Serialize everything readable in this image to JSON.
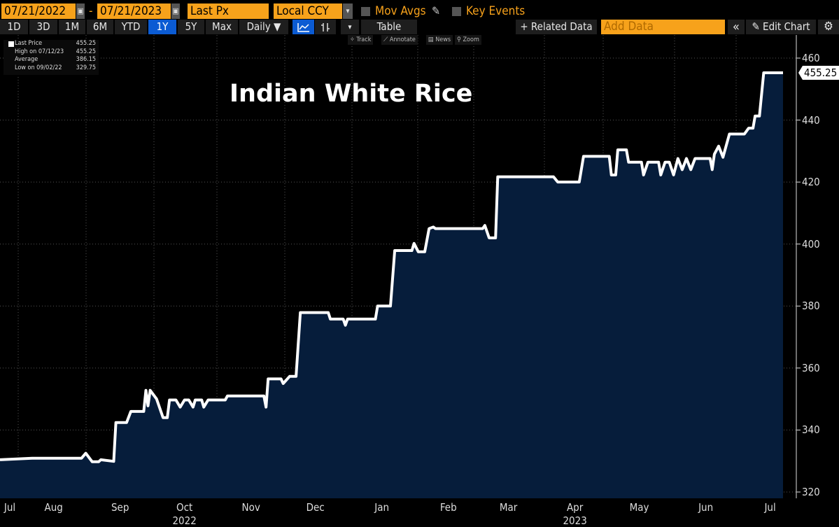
{
  "toolbar": {
    "start_date": "07/21/2022",
    "separator": "-",
    "end_date": "07/21/2023",
    "field": "Last Px",
    "currency": "Local CCY",
    "mov_avgs_label": "Mov Avgs",
    "key_events_label": "Key Events",
    "periods": [
      "1D",
      "3D",
      "1M",
      "6M",
      "YTD",
      "1Y",
      "5Y",
      "Max"
    ],
    "active_period": "1Y",
    "frequency": "Daily ▼",
    "dropdown_arrow": "▾",
    "table_label": "Table",
    "related_data_label": "+ Related Data",
    "add_data_placeholder": "Add Data",
    "collapse_label": "«",
    "edit_chart_label": "Edit Chart",
    "gear_icon": "⚙",
    "pencil_icon": "✎",
    "line_chart_icon": "line-chart",
    "bar_chart_icon": "ohlc-bars"
  },
  "mini_toolbar": {
    "track": "✧ Track",
    "annotate": "⟋ Annotate",
    "news": "▤ News",
    "zoom": "⚲ Zoom"
  },
  "legend": {
    "rows": [
      {
        "label": "Last Price",
        "value": "455.25"
      },
      {
        "label": "High on 07/12/23",
        "value": "455.25"
      },
      {
        "label": "Average",
        "value": "386.15"
      },
      {
        "label": "Low on 09/02/22",
        "value": "329.75"
      }
    ]
  },
  "colors": {
    "accent": "#f7a21b",
    "active_button": "#0b5bd3",
    "area_fill": "#061d3b",
    "line": "#ffffff",
    "background": "#000000"
  },
  "chart_data": {
    "type": "area",
    "title": "Indian White Rice",
    "xlabel": "",
    "ylabel": "",
    "xlim": [
      "2022-07-21",
      "2023-07-21"
    ],
    "ylim": [
      320,
      460
    ],
    "y_ticks": [
      320,
      340,
      360,
      380,
      400,
      420,
      440,
      460
    ],
    "x_month_labels": [
      {
        "label": "Jul",
        "date": "2022-07-15"
      },
      {
        "label": "Aug",
        "date": "2022-08-15"
      },
      {
        "label": "Sep",
        "date": "2022-09-15"
      },
      {
        "label": "Oct",
        "date": "2022-10-15"
      },
      {
        "label": "Nov",
        "date": "2022-11-15"
      },
      {
        "label": "Dec",
        "date": "2022-12-15"
      },
      {
        "label": "Jan",
        "date": "2023-01-15"
      },
      {
        "label": "Feb",
        "date": "2023-02-15"
      },
      {
        "label": "Mar",
        "date": "2023-03-15"
      },
      {
        "label": "Apr",
        "date": "2023-04-15"
      },
      {
        "label": "May",
        "date": "2023-05-15"
      },
      {
        "label": "Jun",
        "date": "2023-06-15"
      },
      {
        "label": "Jul",
        "date": "2023-07-15"
      }
    ],
    "x_year_labels": [
      {
        "label": "2022",
        "date": "2022-10-15"
      },
      {
        "label": "2023",
        "date": "2023-04-15"
      }
    ],
    "grid": true,
    "last_value_label": "455.25",
    "series": [
      {
        "points": [
          [
            "2022-07-21",
            330.4
          ],
          [
            "2022-08-05",
            330.9
          ],
          [
            "2022-08-28",
            330.9
          ],
          [
            "2022-08-30",
            332.5
          ],
          [
            "2022-09-02",
            329.75
          ],
          [
            "2022-09-05",
            329.75
          ],
          [
            "2022-09-06",
            330.4
          ],
          [
            "2022-09-12",
            329.9
          ],
          [
            "2022-09-13",
            342.4
          ],
          [
            "2022-09-18",
            342.4
          ],
          [
            "2022-09-20",
            346
          ],
          [
            "2022-09-26",
            346
          ],
          [
            "2022-09-27",
            352.8
          ],
          [
            "2022-09-28",
            347.8
          ],
          [
            "2022-09-29",
            352.8
          ],
          [
            "2022-10-02",
            350
          ],
          [
            "2022-10-05",
            344
          ],
          [
            "2022-10-07",
            344
          ],
          [
            "2022-10-08",
            349.7
          ],
          [
            "2022-10-11",
            349.7
          ],
          [
            "2022-10-13",
            347.4
          ],
          [
            "2022-10-15",
            349.7
          ],
          [
            "2022-10-17",
            349.7
          ],
          [
            "2022-10-19",
            347.4
          ],
          [
            "2022-10-20",
            349.7
          ],
          [
            "2022-10-23",
            349.7
          ],
          [
            "2022-10-24",
            347.4
          ],
          [
            "2022-10-26",
            349.7
          ],
          [
            "2022-11-03",
            349.7
          ],
          [
            "2022-11-04",
            351
          ],
          [
            "2022-11-21",
            351
          ],
          [
            "2022-11-22",
            347.4
          ],
          [
            "2022-11-23",
            356.5
          ],
          [
            "2022-11-29",
            356.5
          ],
          [
            "2022-11-30",
            355
          ],
          [
            "2022-12-03",
            357.3
          ],
          [
            "2022-12-06",
            357.3
          ],
          [
            "2022-12-08",
            377.9
          ],
          [
            "2022-12-21",
            377.9
          ],
          [
            "2022-12-22",
            375.8
          ],
          [
            "2022-12-28",
            375.8
          ],
          [
            "2022-12-29",
            373.8
          ],
          [
            "2022-12-30",
            375.8
          ],
          [
            "2023-01-12",
            375.8
          ],
          [
            "2023-01-13",
            380
          ],
          [
            "2023-01-19",
            380
          ],
          [
            "2023-01-21",
            397.9
          ],
          [
            "2023-01-29",
            397.9
          ],
          [
            "2023-01-30",
            400.2
          ],
          [
            "2023-02-01",
            397.5
          ],
          [
            "2023-02-04",
            397.5
          ],
          [
            "2023-02-06",
            405
          ],
          [
            "2023-02-08",
            405.5
          ],
          [
            "2023-02-09",
            405
          ],
          [
            "2023-03-03",
            405
          ],
          [
            "2023-03-04",
            406
          ],
          [
            "2023-03-06",
            402
          ],
          [
            "2023-03-09",
            402
          ],
          [
            "2023-03-10",
            421.7
          ],
          [
            "2023-04-05",
            421.7
          ],
          [
            "2023-04-07",
            420
          ],
          [
            "2023-04-17",
            420
          ],
          [
            "2023-04-19",
            428.3
          ],
          [
            "2023-05-01",
            428.3
          ],
          [
            "2023-05-02",
            422.3
          ],
          [
            "2023-05-04",
            422.3
          ],
          [
            "2023-05-05",
            430.4
          ],
          [
            "2023-05-09",
            430.4
          ],
          [
            "2023-05-10",
            426.4
          ],
          [
            "2023-05-16",
            426.4
          ],
          [
            "2023-05-17",
            422.3
          ],
          [
            "2023-05-19",
            426.4
          ],
          [
            "2023-05-24",
            426.4
          ],
          [
            "2023-05-25",
            422.3
          ],
          [
            "2023-05-27",
            426.4
          ],
          [
            "2023-05-29",
            426.4
          ],
          [
            "2023-05-31",
            422.3
          ],
          [
            "2023-06-02",
            427.6
          ],
          [
            "2023-06-04",
            424
          ],
          [
            "2023-06-06",
            427.6
          ],
          [
            "2023-06-08",
            424
          ],
          [
            "2023-06-10",
            427.6
          ],
          [
            "2023-06-17",
            427.6
          ],
          [
            "2023-06-18",
            424
          ],
          [
            "2023-06-19",
            429
          ],
          [
            "2023-06-21",
            431.6
          ],
          [
            "2023-06-23",
            428
          ],
          [
            "2023-06-26",
            435.5
          ],
          [
            "2023-07-03",
            435.5
          ],
          [
            "2023-07-05",
            437.4
          ],
          [
            "2023-07-07",
            437.4
          ],
          [
            "2023-07-08",
            441.3
          ],
          [
            "2023-07-10",
            441.3
          ],
          [
            "2023-07-12",
            455.25
          ],
          [
            "2023-07-21",
            455.25
          ]
        ]
      }
    ]
  }
}
